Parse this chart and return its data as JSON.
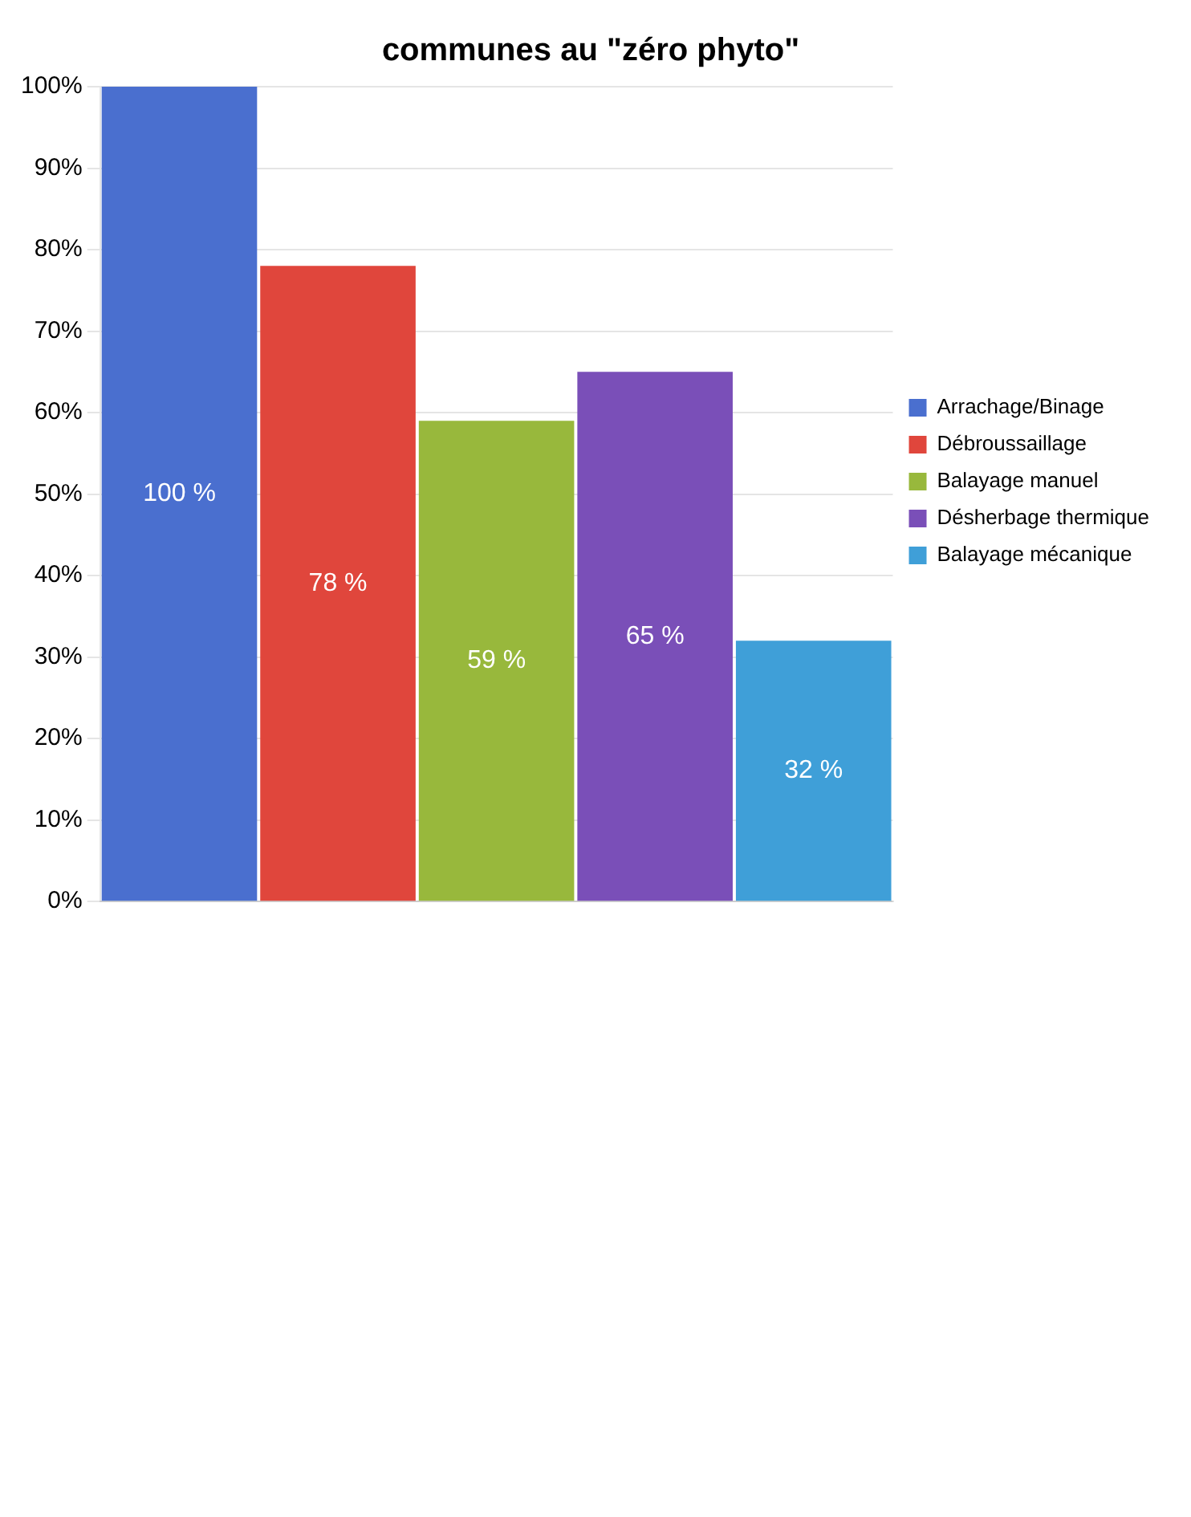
{
  "chart_data": {
    "type": "bar",
    "title": "communes au \"zéro phyto\"",
    "categories": [
      null
    ],
    "series": [
      {
        "name": "Arrachage/Binage",
        "color": "#4a6fcf",
        "values": [
          100
        ],
        "value_labels": [
          "100 %"
        ]
      },
      {
        "name": "Débroussaillage",
        "color": "#e0463c",
        "values": [
          78
        ],
        "value_labels": [
          "78 %"
        ]
      },
      {
        "name": "Balayage manuel",
        "color": "#98b83c",
        "values": [
          59
        ],
        "value_labels": [
          "59 %"
        ]
      },
      {
        "name": "Désherbage thermique",
        "color": "#7a4fb8",
        "values": [
          65
        ],
        "value_labels": [
          "65 %"
        ]
      },
      {
        "name": "Balayage mécanique",
        "color": "#3f9fd8",
        "values": [
          32
        ],
        "value_labels": [
          "32 %"
        ]
      }
    ],
    "ylim": [
      0,
      100
    ],
    "yticks": [
      {
        "value": 0,
        "label": "0%"
      },
      {
        "value": 10,
        "label": "10%"
      },
      {
        "value": 20,
        "label": "20%"
      },
      {
        "value": 30,
        "label": "30%"
      },
      {
        "value": 40,
        "label": "40%"
      },
      {
        "value": 50,
        "label": "50%"
      },
      {
        "value": 60,
        "label": "60%"
      },
      {
        "value": 70,
        "label": "70%"
      },
      {
        "value": 80,
        "label": "80%"
      },
      {
        "value": 90,
        "label": "90%"
      },
      {
        "value": 100,
        "label": "100%"
      }
    ],
    "grid": "y",
    "legend": "right"
  }
}
